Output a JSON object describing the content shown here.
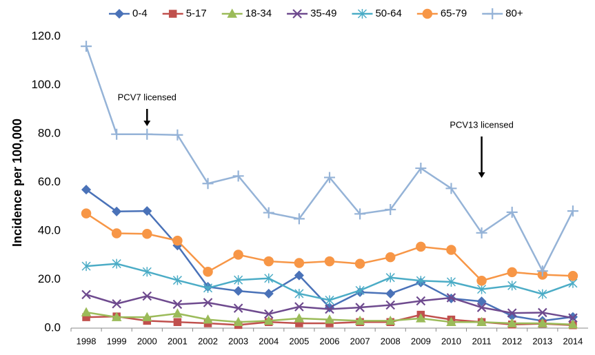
{
  "chart_data": {
    "type": "line",
    "y_label": "Incidence per 100,000",
    "categories": [
      "1998",
      "1999",
      "2000",
      "2001",
      "2002",
      "2003",
      "2004",
      "2005",
      "2006",
      "2007",
      "2008",
      "2009",
      "2010",
      "2011",
      "2012",
      "2013",
      "2014"
    ],
    "series": [
      {
        "name": "0-4",
        "color": "#4a72b8",
        "marker": "diamond",
        "values": [
          57,
          48,
          48.2,
          34,
          17,
          15.3,
          14.2,
          21.7,
          8.5,
          14.8,
          14.2,
          18.8,
          12.2,
          11,
          5,
          3,
          4.6
        ]
      },
      {
        "name": "5-17",
        "color": "#c0504d",
        "marker": "square",
        "values": [
          4.5,
          4.8,
          3,
          2.5,
          2,
          1.3,
          2.5,
          2,
          2,
          2.5,
          2.5,
          5.5,
          3.5,
          2.5,
          1.5,
          1.8,
          1.2
        ]
      },
      {
        "name": "18-34",
        "color": "#9bbb59",
        "marker": "triangle",
        "values": [
          6.5,
          4.5,
          4.5,
          6,
          3.5,
          2.5,
          3,
          4,
          3.5,
          3,
          3,
          4,
          2.5,
          2.5,
          2,
          2,
          1.5
        ]
      },
      {
        "name": "35-49",
        "color": "#6e4a8e",
        "marker": "x",
        "values": [
          13.8,
          10,
          13.2,
          9.8,
          10.5,
          8.2,
          5.8,
          8.8,
          7.8,
          8.5,
          9.5,
          11.2,
          12.5,
          8.5,
          6.2,
          6.4,
          4.2
        ]
      },
      {
        "name": "50-64",
        "color": "#4bacc6",
        "marker": "asterisk",
        "values": [
          25.5,
          26.5,
          23.2,
          19.7,
          16.5,
          19.8,
          20.5,
          14.2,
          11.5,
          15.5,
          20.8,
          19.5,
          19,
          16,
          17.5,
          14,
          18.5
        ]
      },
      {
        "name": "65-79",
        "color": "#f79646",
        "marker": "circle",
        "values": [
          47.2,
          39,
          38.8,
          36,
          23.2,
          30.2,
          27.5,
          26.8,
          27.5,
          26.5,
          29.2,
          33.5,
          32.2,
          19.5,
          23,
          22,
          21.5
        ]
      },
      {
        "name": "80+",
        "color": "#95b3d7",
        "marker": "plus",
        "values": [
          116,
          79.8,
          79.8,
          79.5,
          59.5,
          62.6,
          47.5,
          45,
          62,
          47,
          48.8,
          65.8,
          57.5,
          39.2,
          47.7,
          23.5,
          48.2
        ]
      }
    ],
    "ylim": [
      0,
      120
    ],
    "yticks": [
      {
        "value": 0,
        "label": "0.0"
      },
      {
        "value": 20,
        "label": "20.0"
      },
      {
        "value": 40,
        "label": "40.0"
      },
      {
        "value": 60,
        "label": "60.0"
      },
      {
        "value": 80,
        "label": "80.0"
      },
      {
        "value": 100,
        "label": "100.0"
      },
      {
        "value": 120,
        "label": "120.0"
      }
    ],
    "grid": false,
    "legend": "top",
    "annotations": [
      {
        "text": "PCV7 licensed",
        "x": "2000"
      },
      {
        "text": "PCV13 licensed",
        "x": "2011"
      }
    ]
  }
}
